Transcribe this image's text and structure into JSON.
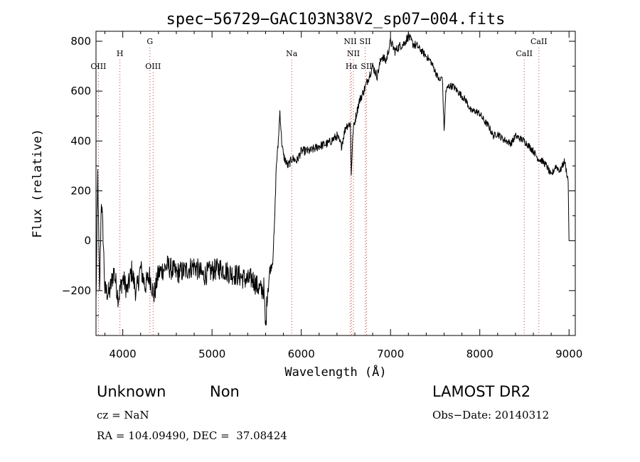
{
  "chart_data": {
    "type": "line",
    "title": "spec−56729−GAC103N38V2_sp07−004.fits",
    "xlabel": "Wavelength (Å)",
    "ylabel": "Flux (relative)",
    "xlim": [
      3700,
      9070
    ],
    "ylim": [
      -380,
      840
    ],
    "xticks": [
      4000,
      5000,
      6000,
      7000,
      8000,
      9000
    ],
    "yticks": [
      -200,
      0,
      200,
      400,
      600,
      800
    ],
    "ytick_labels": [
      "−200",
      "0",
      "200",
      "400",
      "600",
      "800"
    ],
    "grid": false,
    "line_markers": [
      {
        "label": "OIII",
        "x": 3727,
        "row": 3
      },
      {
        "label": "H",
        "x": 3968,
        "row": 2
      },
      {
        "label": "G",
        "x": 4304,
        "row": 1
      },
      {
        "label": "OIII",
        "x": 4340,
        "row": 3
      },
      {
        "label": "Na",
        "x": 5893,
        "row": 2
      },
      {
        "label": "NII",
        "x": 6549,
        "row": 1
      },
      {
        "label": "NII",
        "x": 6584,
        "row": 2
      },
      {
        "label": "Hα",
        "x": 6563,
        "row": 3
      },
      {
        "label": "SII",
        "x": 6716,
        "row": 1
      },
      {
        "label": "SII",
        "x": 6731,
        "row": 3
      },
      {
        "label": "CaII",
        "x": 8498,
        "row": 2
      },
      {
        "label": "CaII",
        "x": 8662,
        "row": 1
      }
    ],
    "series": [
      {
        "x": [
          3700,
          3720,
          3740,
          3760,
          3780,
          3800,
          3850,
          3900,
          3950,
          4000,
          4050,
          4100,
          4150,
          4200,
          4250,
          4300,
          4350,
          4400,
          4500,
          4600,
          4700,
          4800,
          4900,
          5000,
          5100,
          5200,
          5300,
          5400,
          5450,
          5500,
          5550,
          5580,
          5600,
          5620,
          5650,
          5680,
          5700,
          5720,
          5740,
          5760,
          5780,
          5800,
          5850,
          5900,
          5950,
          6000,
          6100,
          6200,
          6300,
          6400,
          6450,
          6500,
          6550,
          6560,
          6580,
          6600,
          6650,
          6700,
          6750,
          6800,
          6850,
          6900,
          6950,
          7000,
          7050,
          7100,
          7150,
          7200,
          7250,
          7300,
          7350,
          7400,
          7450,
          7500,
          7550,
          7580,
          7600,
          7620,
          7650,
          7700,
          7750,
          7800,
          7850,
          7900,
          7950,
          8000,
          8050,
          8100,
          8150,
          8200,
          8250,
          8300,
          8350,
          8400,
          8450,
          8500,
          8550,
          8600,
          8650,
          8700,
          8750,
          8800,
          8850,
          8900,
          8950,
          8990,
          9000
        ],
        "y": [
          -250,
          270,
          -220,
          170,
          20,
          -200,
          -210,
          -120,
          -230,
          -150,
          -200,
          -120,
          -210,
          -110,
          -180,
          -140,
          -220,
          -130,
          -100,
          -130,
          -120,
          -100,
          -140,
          -120,
          -110,
          -130,
          -140,
          -160,
          -150,
          -180,
          -200,
          -190,
          -360,
          -200,
          -120,
          -80,
          60,
          300,
          380,
          520,
          400,
          340,
          300,
          330,
          320,
          360,
          360,
          380,
          390,
          420,
          380,
          460,
          470,
          270,
          440,
          480,
          560,
          600,
          650,
          700,
          660,
          740,
          720,
          800,
          760,
          780,
          790,
          820,
          790,
          780,
          760,
          740,
          720,
          680,
          640,
          660,
          440,
          600,
          620,
          620,
          600,
          580,
          560,
          520,
          520,
          510,
          480,
          460,
          420,
          430,
          410,
          400,
          390,
          420,
          410,
          400,
          380,
          360,
          330,
          320,
          300,
          260,
          300,
          280,
          320,
          240,
          0
        ]
      }
    ]
  },
  "footer": {
    "object_class": "Unknown",
    "object_subclass": "Non",
    "survey": "LAMOST DR2",
    "cz": "cz = NaN",
    "obs_date": "Obs−Date: 20140312",
    "coords": "RA = 104.09490, DEC =  37.08424"
  }
}
